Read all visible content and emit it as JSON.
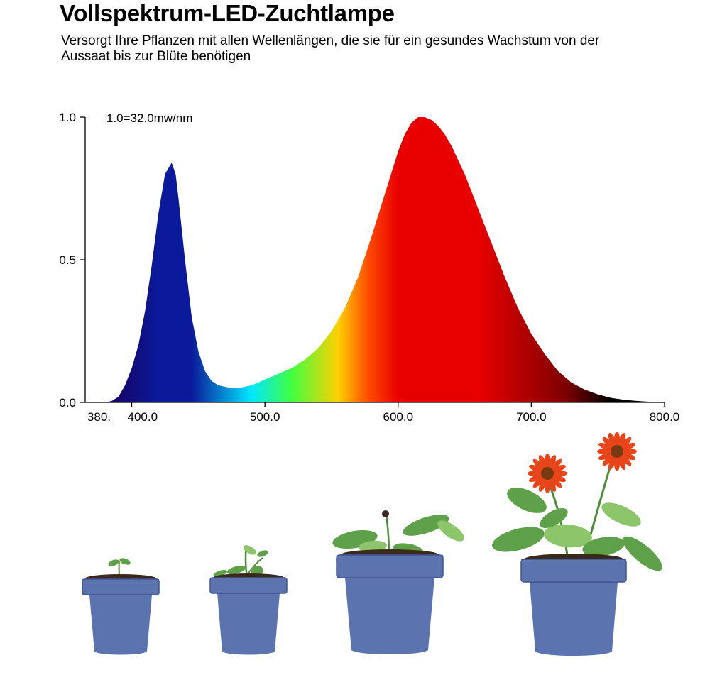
{
  "header": {
    "title": "Vollspektrum-LED-Zuchtlampe",
    "subtitle": "Versorgt Ihre Pflanzen mit allen Wellenlängen, die sie für ein gesundes Wachstum von der Aussaat bis zur Blüte benötigen"
  },
  "chart_data": {
    "type": "area",
    "title": "",
    "xlabel": "",
    "ylabel": "",
    "annotation": "1.0=32.0mw/nm",
    "xlim": [
      380,
      800
    ],
    "ylim": [
      0,
      1
    ],
    "grid": false,
    "x_ticks": [
      {
        "value": 380,
        "label": "380."
      },
      {
        "value": 400,
        "label": "400.0"
      },
      {
        "value": 500,
        "label": "500.0"
      },
      {
        "value": 600,
        "label": "600.0"
      },
      {
        "value": 700,
        "label": "700.0"
      },
      {
        "value": 800,
        "label": "800.0"
      }
    ],
    "y_ticks": [
      {
        "value": 0,
        "label": "0.0"
      },
      {
        "value": 0.5,
        "label": "0.5"
      },
      {
        "value": 1,
        "label": "1.0"
      }
    ],
    "series": [
      {
        "x": [
          380,
          385,
          390,
          395,
          400,
          405,
          410,
          415,
          420,
          425,
          430,
          433,
          435,
          440,
          445,
          450,
          455,
          460,
          465,
          470,
          475,
          480,
          485,
          490,
          495,
          500,
          505,
          510,
          520,
          530,
          540,
          550,
          560,
          570,
          580,
          590,
          600,
          605,
          610,
          615,
          620,
          625,
          630,
          635,
          640,
          645,
          650,
          655,
          660,
          670,
          680,
          690,
          700,
          710,
          720,
          730,
          740,
          750,
          760,
          770,
          780,
          790,
          800
        ],
        "y": [
          0,
          0.005,
          0.02,
          0.06,
          0.12,
          0.2,
          0.32,
          0.48,
          0.66,
          0.8,
          0.84,
          0.8,
          0.72,
          0.5,
          0.3,
          0.18,
          0.11,
          0.075,
          0.06,
          0.055,
          0.05,
          0.05,
          0.055,
          0.06,
          0.07,
          0.08,
          0.09,
          0.1,
          0.12,
          0.15,
          0.19,
          0.25,
          0.33,
          0.44,
          0.58,
          0.73,
          0.88,
          0.94,
          0.98,
          1.0,
          1.0,
          0.99,
          0.97,
          0.94,
          0.9,
          0.85,
          0.8,
          0.74,
          0.68,
          0.56,
          0.44,
          0.33,
          0.24,
          0.17,
          0.11,
          0.07,
          0.045,
          0.028,
          0.016,
          0.009,
          0.005,
          0.002,
          0
        ]
      }
    ],
    "colors": {
      "violet": "#1a005a",
      "blue": "#0a1a9a",
      "cyan": "#00e8ff",
      "green": "#40ff40",
      "yellow": "#ffd000",
      "orange": "#ff4a00",
      "red": "#e80000",
      "dark_red": "#800000",
      "black": "#000000",
      "axis": "#000000"
    }
  },
  "illustration": {
    "pot_color": "#5b74b0",
    "pot_shadow": "#3f5590",
    "soil_color": "#3a2a1a",
    "leaf_color": "#5fa04a",
    "leaf_light": "#8cc56a",
    "flower_color": "#e8461a",
    "flower_center": "#7a3a10",
    "stem_color": "#4f8a3a"
  }
}
